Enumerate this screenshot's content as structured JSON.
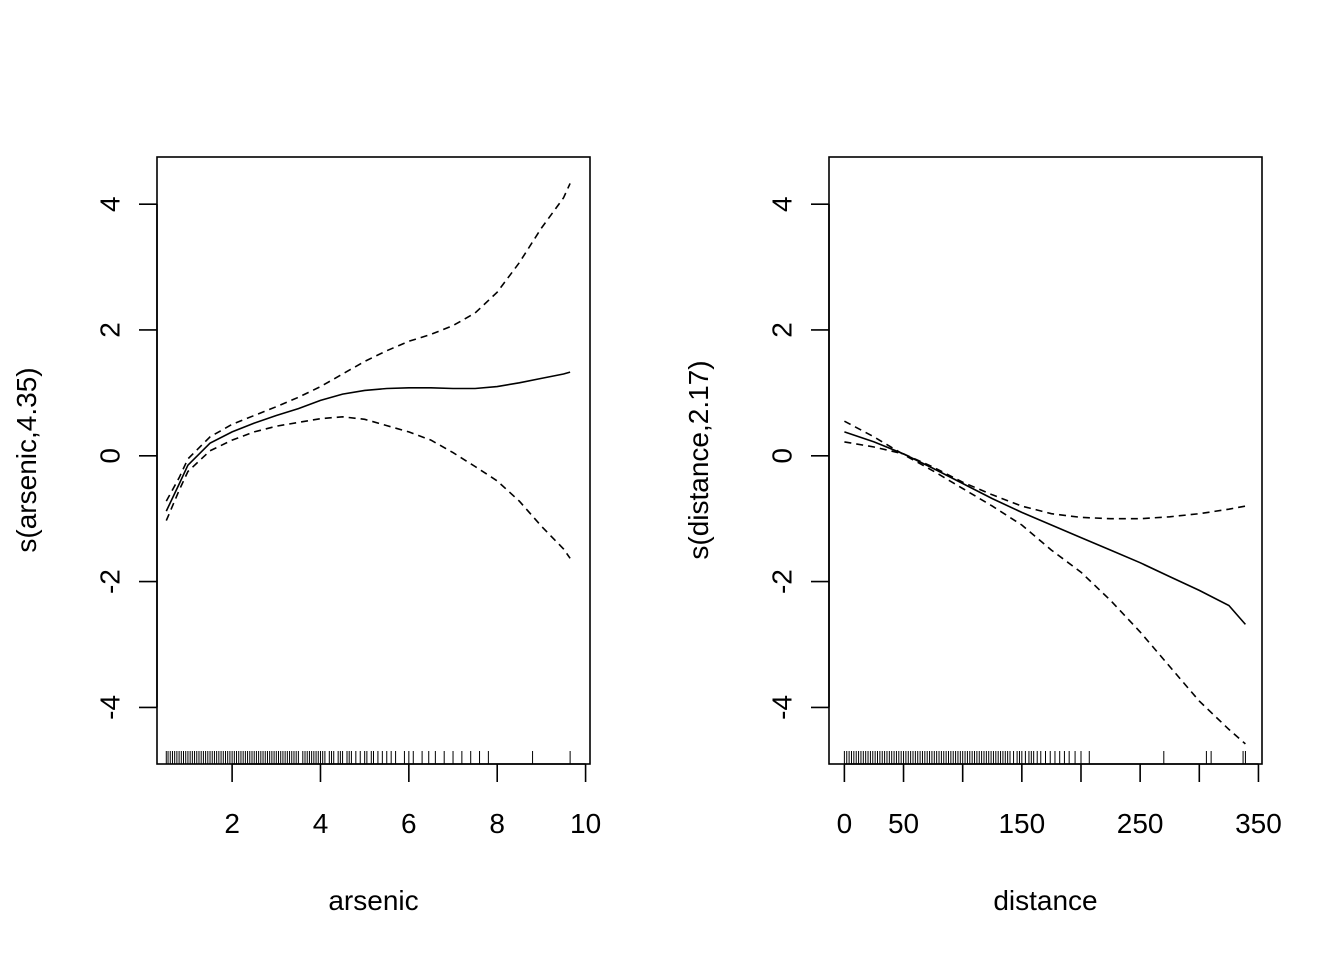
{
  "chart_data": [
    {
      "type": "line",
      "xlabel": "arsenic",
      "ylabel": "s(arsenic,4.35)",
      "xlim": [
        0.3,
        10.1
      ],
      "ylim": [
        -4.9,
        4.75
      ],
      "xticks": [
        2,
        4,
        6,
        8,
        10
      ],
      "yticks": [
        -4,
        -2,
        0,
        2,
        4
      ],
      "grid": false,
      "series": [
        {
          "style": "solid",
          "x": [
            0.51,
            0.8,
            1.0,
            1.5,
            2.0,
            2.5,
            3.0,
            3.5,
            4.0,
            4.5,
            5.0,
            5.5,
            6.0,
            6.5,
            7.0,
            7.5,
            8.0,
            8.5,
            9.0,
            9.5,
            9.65
          ],
          "y": [
            -0.88,
            -0.45,
            -0.15,
            0.2,
            0.38,
            0.52,
            0.64,
            0.75,
            0.88,
            0.98,
            1.04,
            1.07,
            1.08,
            1.08,
            1.07,
            1.07,
            1.1,
            1.16,
            1.23,
            1.3,
            1.33
          ]
        },
        {
          "style": "dashed",
          "x": [
            0.51,
            0.8,
            1.0,
            1.5,
            2.0,
            2.5,
            3.0,
            3.5,
            4.0,
            4.5,
            5.0,
            5.5,
            6.0,
            6.5,
            7.0,
            7.5,
            8.0,
            8.5,
            9.0,
            9.5,
            9.65
          ],
          "y": [
            -0.72,
            -0.35,
            -0.05,
            0.3,
            0.5,
            0.64,
            0.78,
            0.93,
            1.1,
            1.3,
            1.5,
            1.67,
            1.82,
            1.93,
            2.07,
            2.27,
            2.6,
            3.07,
            3.62,
            4.1,
            4.33
          ]
        },
        {
          "style": "dashed",
          "x": [
            0.51,
            0.8,
            1.0,
            1.5,
            2.0,
            2.5,
            3.0,
            3.5,
            4.0,
            4.5,
            5.0,
            5.5,
            6.0,
            6.5,
            7.0,
            7.5,
            8.0,
            8.5,
            9.0,
            9.5,
            9.65
          ],
          "y": [
            -1.03,
            -0.55,
            -0.25,
            0.08,
            0.25,
            0.38,
            0.47,
            0.53,
            0.59,
            0.62,
            0.58,
            0.48,
            0.38,
            0.25,
            0.05,
            -0.17,
            -0.4,
            -0.72,
            -1.12,
            -1.48,
            -1.63
          ]
        }
      ],
      "rug": [
        0.51,
        0.55,
        0.6,
        0.65,
        0.7,
        0.75,
        0.8,
        0.85,
        0.9,
        0.95,
        1.0,
        1.05,
        1.1,
        1.15,
        1.2,
        1.25,
        1.3,
        1.35,
        1.4,
        1.45,
        1.5,
        1.55,
        1.6,
        1.65,
        1.7,
        1.75,
        1.8,
        1.85,
        1.9,
        1.95,
        2.0,
        2.05,
        2.1,
        2.15,
        2.2,
        2.25,
        2.3,
        2.35,
        2.4,
        2.45,
        2.5,
        2.55,
        2.6,
        2.65,
        2.7,
        2.75,
        2.8,
        2.85,
        2.9,
        2.95,
        3.0,
        3.05,
        3.1,
        3.15,
        3.2,
        3.25,
        3.3,
        3.35,
        3.4,
        3.45,
        3.5,
        3.6,
        3.65,
        3.7,
        3.75,
        3.8,
        3.85,
        3.9,
        3.95,
        4.0,
        4.05,
        4.1,
        4.2,
        4.25,
        4.3,
        4.4,
        4.45,
        4.5,
        4.6,
        4.65,
        4.7,
        4.8,
        4.9,
        5.0,
        5.05,
        5.15,
        5.2,
        5.3,
        5.4,
        5.5,
        5.6,
        5.7,
        5.9,
        6.0,
        6.1,
        6.3,
        6.45,
        6.6,
        6.8,
        7.0,
        7.2,
        7.4,
        7.6,
        7.8,
        8.8,
        9.65
      ]
    },
    {
      "type": "line",
      "xlabel": "distance",
      "ylabel": "s(distance,2.17)",
      "xlim": [
        -13,
        353
      ],
      "ylim": [
        -4.9,
        4.75
      ],
      "xticks": [
        0,
        50,
        100,
        150,
        200,
        250,
        300,
        350
      ],
      "xticklabels": [
        "0",
        "50",
        "",
        "150",
        "",
        "250",
        "",
        "350"
      ],
      "yticks": [
        -4,
        -2,
        0,
        2,
        4
      ],
      "grid": false,
      "series": [
        {
          "style": "solid",
          "x": [
            0,
            25,
            50,
            75,
            100,
            125,
            150,
            175,
            200,
            225,
            250,
            275,
            300,
            325,
            339
          ],
          "y": [
            0.38,
            0.22,
            0.03,
            -0.2,
            -0.44,
            -0.68,
            -0.9,
            -1.1,
            -1.3,
            -1.5,
            -1.7,
            -1.92,
            -2.14,
            -2.38,
            -2.68
          ]
        },
        {
          "style": "dashed",
          "x": [
            0,
            25,
            50,
            75,
            100,
            125,
            150,
            175,
            200,
            225,
            250,
            275,
            300,
            325,
            339
          ],
          "y": [
            0.22,
            0.14,
            0.03,
            -0.18,
            -0.42,
            -0.62,
            -0.8,
            -0.92,
            -0.98,
            -1.0,
            -1.0,
            -0.97,
            -0.92,
            -0.85,
            -0.8
          ]
        },
        {
          "style": "dashed",
          "x": [
            0,
            25,
            50,
            75,
            100,
            125,
            150,
            175,
            200,
            225,
            250,
            275,
            300,
            325,
            339
          ],
          "y": [
            0.55,
            0.3,
            0.02,
            -0.24,
            -0.52,
            -0.8,
            -1.1,
            -1.5,
            -1.85,
            -2.3,
            -2.8,
            -3.35,
            -3.9,
            -4.35,
            -4.58
          ]
        }
      ],
      "rug": [
        0,
        2,
        4,
        6,
        8,
        10,
        12,
        14,
        16,
        18,
        20,
        22,
        24,
        26,
        28,
        30,
        32,
        34,
        36,
        38,
        40,
        42,
        44,
        46,
        48,
        50,
        52,
        54,
        56,
        58,
        60,
        62,
        64,
        66,
        68,
        70,
        72,
        74,
        76,
        78,
        80,
        82,
        84,
        86,
        88,
        90,
        92,
        94,
        96,
        98,
        100,
        102,
        104,
        106,
        108,
        110,
        112,
        114,
        116,
        118,
        120,
        122,
        124,
        126,
        128,
        130,
        132,
        134,
        136,
        138,
        140,
        143,
        146,
        148,
        150,
        153,
        156,
        158,
        160,
        163,
        166,
        170,
        174,
        178,
        182,
        186,
        190,
        195,
        200,
        207,
        270,
        306,
        310,
        337,
        339
      ]
    }
  ]
}
